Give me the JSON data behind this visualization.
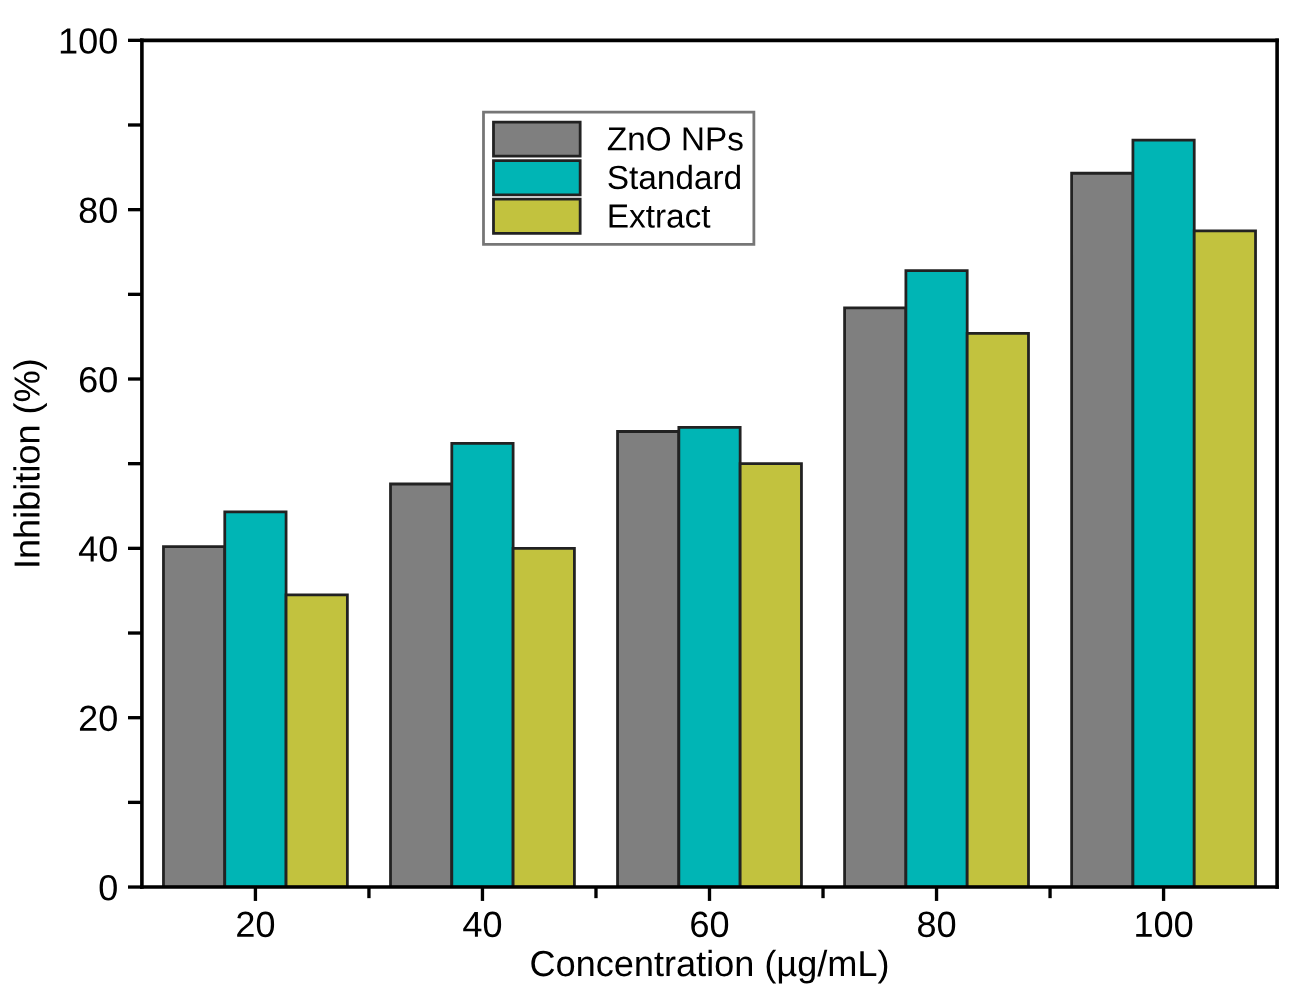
{
  "chart_data": {
    "type": "bar",
    "xlabel": "Concentration (µg/mL)",
    "ylabel": "Inhibition (%)",
    "categories": [
      "20",
      "40",
      "60",
      "80",
      "100"
    ],
    "series": [
      {
        "name": "ZnO NPs",
        "color": "#7f7f7f",
        "values": [
          40.2,
          47.6,
          53.8,
          68.4,
          84.3
        ]
      },
      {
        "name": "Standard",
        "color": "#00b5b5",
        "values": [
          44.3,
          52.4,
          54.3,
          72.8,
          88.2
        ]
      },
      {
        "name": "Extract",
        "color": "#c2c23e",
        "values": [
          34.5,
          40.0,
          50.0,
          65.4,
          77.5
        ]
      }
    ],
    "ylim": [
      0,
      100
    ],
    "yticks": [
      0,
      {
        "value": 10,
        "label": null
      },
      20,
      {
        "value": 30,
        "label": null
      },
      40,
      {
        "value": 50,
        "label": null
      },
      60,
      {
        "value": 70,
        "label": null
      },
      80,
      {
        "value": 90,
        "label": null
      },
      100
    ],
    "legend": "top center",
    "grid": false
  }
}
